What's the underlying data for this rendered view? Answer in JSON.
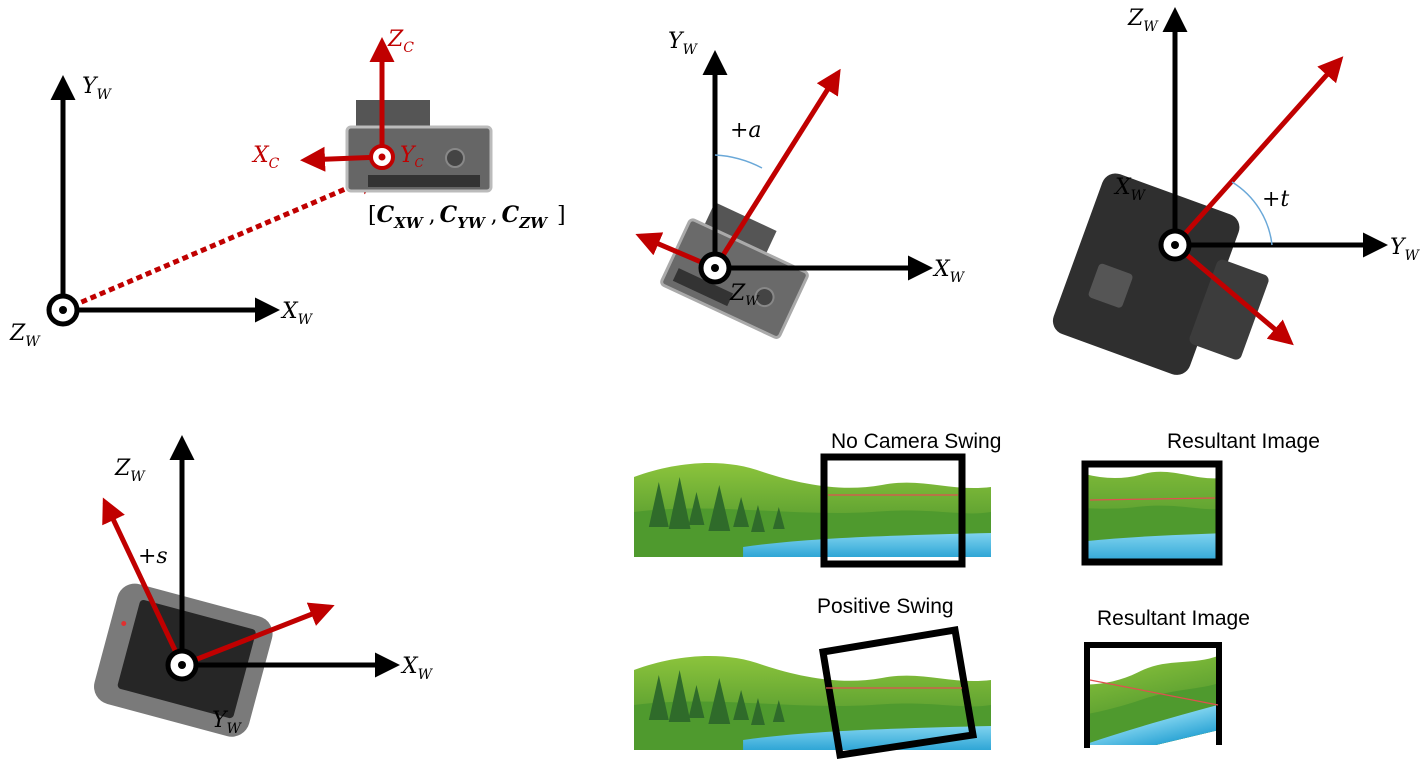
{
  "panel1": {
    "yw": "Y",
    "yw_sub": "W",
    "xw": "X",
    "xw_sub": "W",
    "zw": "Z",
    "zw_sub": "W",
    "zc": "Z",
    "zc_sub": "C",
    "xc": "X",
    "xc_sub": "C",
    "yc": "Y",
    "yc_sub": "C",
    "coord_open": "[",
    "cx": "C",
    "cx_sub": "XW",
    "sep1": ",",
    "cy": "C",
    "cy_sub": "YW",
    "sep2": ",",
    "cz": "C",
    "cz_sub": "ZW",
    "coord_close": "]"
  },
  "panel2": {
    "yw": "Y",
    "yw_sub": "W",
    "xw": "X",
    "xw_sub": "W",
    "zw": "Z",
    "zw_sub": "W",
    "angle": "+a"
  },
  "panel3": {
    "zw": "Z",
    "zw_sub": "W",
    "xw": "X",
    "xw_sub": "W",
    "yw": "Y",
    "yw_sub": "W",
    "angle": "+t"
  },
  "panel4": {
    "zw": "Z",
    "zw_sub": "W",
    "xw": "X",
    "xw_sub": "W",
    "yw": "Y",
    "yw_sub": "W",
    "angle": "+s"
  },
  "swing": {
    "no_swing": "No Camera Swing",
    "resultant1": "Resultant Image",
    "positive_swing": "Positive Swing",
    "resultant2": "Resultant Image"
  },
  "colors": {
    "axis": "#000000",
    "camera_axis": "#c00000",
    "water": "#4db6e0",
    "grass": "#5aa832"
  }
}
